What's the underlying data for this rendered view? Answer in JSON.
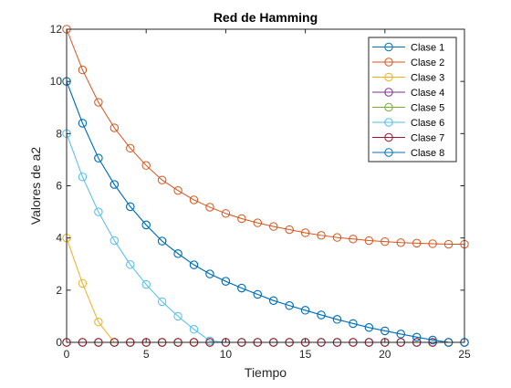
{
  "chart_data": {
    "type": "line",
    "title": "Red de Hamming",
    "xlabel": "Tiempo",
    "ylabel": "Valores de a2",
    "xlim": [
      0,
      25
    ],
    "ylim": [
      0,
      12
    ],
    "xticks": [
      0,
      5,
      10,
      15,
      20,
      25
    ],
    "yticks": [
      0,
      2,
      4,
      6,
      8,
      10,
      12
    ],
    "grid": false,
    "legend_position": "top-right",
    "marker": "circle",
    "x": [
      0,
      1,
      2,
      3,
      4,
      5,
      6,
      7,
      8,
      9,
      10,
      11,
      12,
      13,
      14,
      15,
      16,
      17,
      18,
      19,
      20,
      21,
      22,
      23,
      24,
      25
    ],
    "series": [
      {
        "name": "Clase 1",
        "color": "#0072BD",
        "values": [
          10,
          8.4,
          7.06,
          6.05,
          5.2,
          4.5,
          3.88,
          3.4,
          2.97,
          2.62,
          2.34,
          2.08,
          1.84,
          1.6,
          1.41,
          1.23,
          1.05,
          0.88,
          0.72,
          0.57,
          0.44,
          0.32,
          0.2,
          0.09,
          0,
          0
        ]
      },
      {
        "name": "Clase 2",
        "color": "#D95319",
        "values": [
          12,
          10.44,
          9.2,
          8.22,
          7.44,
          6.78,
          6.22,
          5.82,
          5.46,
          5.18,
          4.94,
          4.74,
          4.58,
          4.44,
          4.32,
          4.2,
          4.1,
          4.02,
          3.96,
          3.9,
          3.86,
          3.82,
          3.8,
          3.78,
          3.76,
          3.76
        ]
      },
      {
        "name": "Clase 3",
        "color": "#EDB120",
        "values": [
          4,
          2.26,
          0.78,
          0,
          0,
          0,
          0,
          0,
          0,
          0,
          0,
          0,
          0,
          0,
          0,
          0,
          0,
          0,
          0,
          0,
          0,
          0,
          0,
          0,
          0,
          0
        ]
      },
      {
        "name": "Clase 4",
        "color": "#7E2F8E",
        "values": [
          0,
          0,
          0,
          0,
          0,
          0,
          0,
          0,
          0,
          0,
          0,
          0,
          0,
          0,
          0,
          0,
          0,
          0,
          0,
          0,
          0,
          0,
          0,
          0,
          0,
          0
        ]
      },
      {
        "name": "Clase 5",
        "color": "#77AC30",
        "values": [
          0,
          0,
          0,
          0,
          0,
          0,
          0,
          0,
          0,
          0,
          0,
          0,
          0,
          0,
          0,
          0,
          0,
          0,
          0,
          0,
          0,
          0,
          0,
          0,
          0,
          0
        ]
      },
      {
        "name": "Clase 6",
        "color": "#4DBEEE",
        "values": [
          8,
          6.34,
          5,
          3.9,
          2.98,
          2.22,
          1.56,
          1,
          0.5,
          0.06,
          0,
          0,
          0,
          0,
          0,
          0,
          0,
          0,
          0,
          0,
          0,
          0,
          0,
          0,
          0,
          0
        ]
      },
      {
        "name": "Clase 7",
        "color": "#A2142F",
        "values": [
          0,
          0,
          0,
          0,
          0,
          0,
          0,
          0,
          0,
          0,
          0,
          0,
          0,
          0,
          0,
          0,
          0,
          0,
          0,
          0,
          0,
          0,
          0,
          0,
          0,
          0
        ]
      },
      {
        "name": "Clase 8",
        "color": "#0072BD",
        "values": [
          10,
          8.4,
          7.06,
          6.05,
          5.2,
          4.5,
          3.88,
          3.4,
          2.97,
          2.62,
          2.34,
          2.08,
          1.84,
          1.6,
          1.41,
          1.23,
          1.05,
          0.88,
          0.72,
          0.57,
          0.44,
          0.32,
          0.2,
          0.09,
          0,
          0
        ]
      }
    ]
  }
}
